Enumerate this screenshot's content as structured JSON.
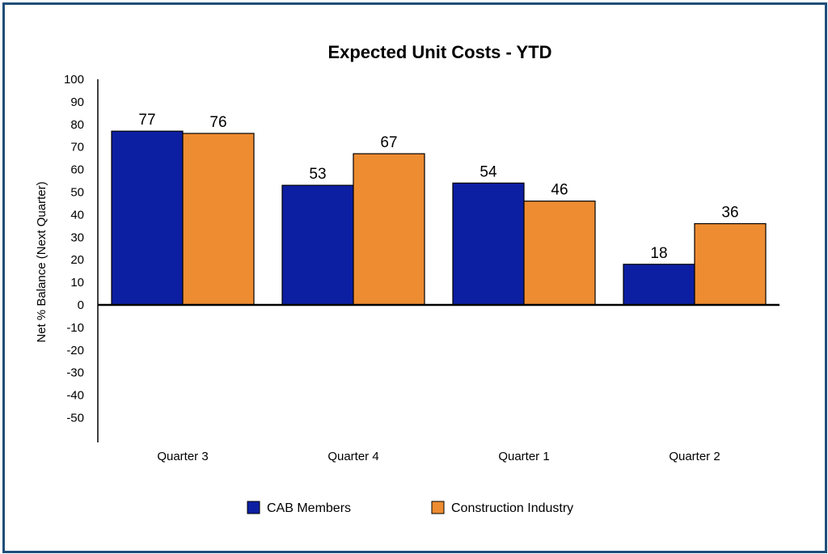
{
  "chart_data": {
    "type": "bar",
    "title": "Expected Unit Costs - YTD",
    "xlabel": "",
    "ylabel": "Net % Balance (Next Quarter)",
    "ylim": [
      -50,
      100
    ],
    "yticks": [
      100,
      90,
      80,
      70,
      60,
      50,
      40,
      30,
      20,
      10,
      0,
      -10,
      -20,
      -30,
      -40,
      -50
    ],
    "categories": [
      "Quarter 3",
      "Quarter 4",
      "Quarter 1",
      "Quarter 2"
    ],
    "series": [
      {
        "name": "CAB Members",
        "values": [
          77,
          53,
          54,
          18
        ],
        "color": "#0c1fa3"
      },
      {
        "name": "Construction Industry",
        "values": [
          76,
          67,
          46,
          36
        ],
        "color": "#ee8c31"
      }
    ],
    "grid": false,
    "legend_position": "bottom-center",
    "border_color": "#1f4e79"
  }
}
